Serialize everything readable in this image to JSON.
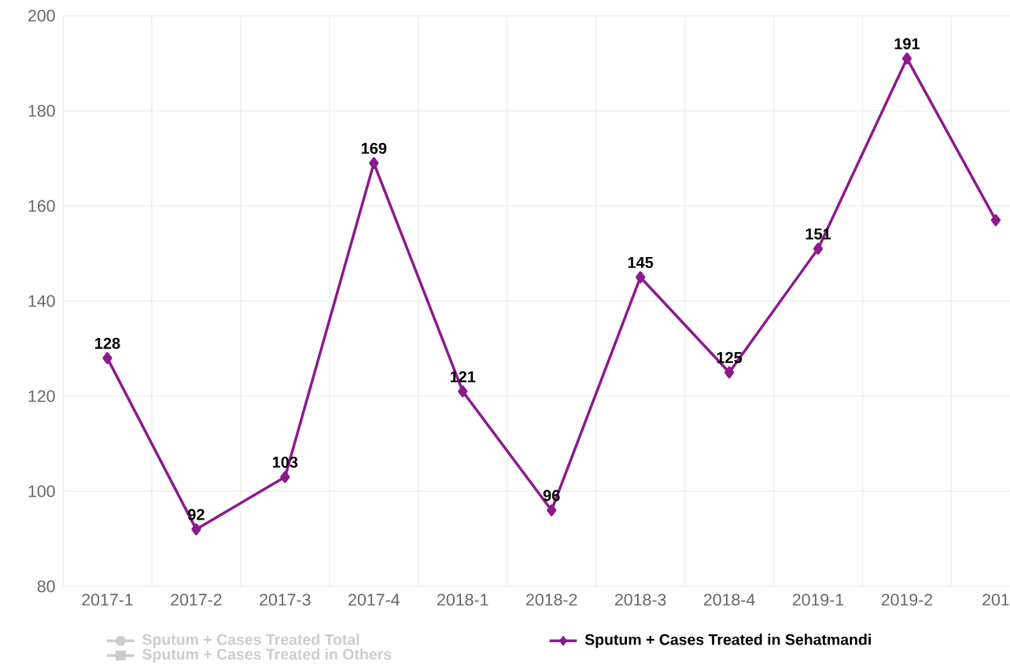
{
  "chart_data": {
    "type": "line",
    "categories": [
      "2017-1",
      "2017-2",
      "2017-3",
      "2017-4",
      "2018-1",
      "2018-2",
      "2018-3",
      "2018-4",
      "2019-1",
      "2019-2",
      "201"
    ],
    "series": [
      {
        "name": "Sputum + Cases Treated Total",
        "color": "#cccccc",
        "marker": "circle",
        "values": [
          null,
          null,
          null,
          null,
          null,
          null,
          null,
          null,
          null,
          null,
          null
        ]
      },
      {
        "name": "Sputum + Cases Treated in Sehatmandi",
        "color": "#8b1a8b",
        "marker": "diamond",
        "values": [
          128,
          92,
          103,
          169,
          121,
          96,
          145,
          125,
          151,
          191,
          157
        ],
        "value_labels": [
          "128",
          "92",
          "103",
          "169",
          "121",
          "96",
          "145",
          "125",
          "151",
          "191",
          null
        ]
      },
      {
        "name": "Sputum + Cases Treated in Others",
        "color": "#cccccc",
        "marker": "square",
        "values": [
          null,
          null,
          null,
          null,
          null,
          null,
          null,
          null,
          null,
          null,
          null
        ]
      }
    ],
    "ylim": [
      80,
      200
    ],
    "yticks": [
      80,
      100,
      120,
      140,
      160,
      180,
      200
    ],
    "grid": true,
    "legend": "bottom"
  }
}
